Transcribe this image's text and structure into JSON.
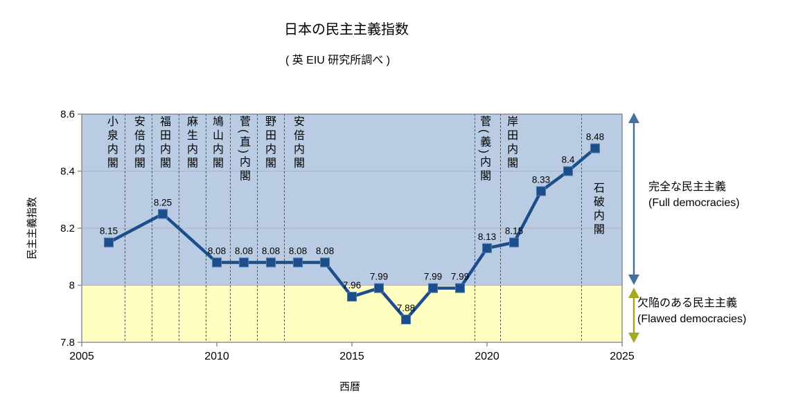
{
  "chart_data": {
    "type": "line",
    "title": "日本の民主主義指数",
    "subtitle": "( 英 EIU 研究所調べ )",
    "xlabel": "西暦",
    "ylabel": "民主主義指数",
    "xlim": [
      2005,
      2025
    ],
    "ylim": [
      7.8,
      8.6
    ],
    "x_ticks": [
      2005,
      2010,
      2015,
      2020,
      2025
    ],
    "y_ticks": [
      8.6,
      8.4,
      8.2,
      8,
      7.8
    ],
    "grid": "horizontal",
    "legend": "none",
    "series": [
      {
        "name": "民主主義指数",
        "points": [
          {
            "year": 2006,
            "value": 8.15
          },
          {
            "year": 2008,
            "value": 8.25
          },
          {
            "year": 2010,
            "value": 8.08
          },
          {
            "year": 2011,
            "value": 8.08
          },
          {
            "year": 2012,
            "value": 8.08
          },
          {
            "year": 2013,
            "value": 8.08
          },
          {
            "year": 2014,
            "value": 8.08
          },
          {
            "year": 2015,
            "value": 7.96
          },
          {
            "year": 2016,
            "value": 7.99
          },
          {
            "year": 2017,
            "value": 7.88
          },
          {
            "year": 2018,
            "value": 7.99
          },
          {
            "year": 2019,
            "value": 7.99
          },
          {
            "year": 2020,
            "value": 8.13
          },
          {
            "year": 2021,
            "value": 8.15
          },
          {
            "year": 2022,
            "value": 8.33
          },
          {
            "year": 2023,
            "value": 8.4
          },
          {
            "year": 2024,
            "value": 8.48
          }
        ]
      }
    ],
    "bands": [
      {
        "id": "full",
        "label_jp": "完全な民主主義",
        "label_en": "(Full democracies)",
        "from": 8.0,
        "to": 8.6,
        "color": "#B9CCE4",
        "arrow_color": "#41719C"
      },
      {
        "id": "flawed",
        "label_jp": "欠陥のある民主主義",
        "label_en": "(Flawed democracies)",
        "from": 7.8,
        "to": 8.0,
        "color": "#FFFFC2",
        "arrow_color": "#A4A820"
      }
    ],
    "cabinets": [
      {
        "label": "小泉内閣",
        "divider_year": null,
        "label_year": 2006.1,
        "label_row": "top"
      },
      {
        "label": "安倍内閣",
        "divider_year": 2006.6,
        "label_year": 2007.1,
        "label_row": "top"
      },
      {
        "label": "福田内閣",
        "divider_year": 2007.6,
        "label_year": 2008.05,
        "label_row": "top"
      },
      {
        "label": "麻生内閣",
        "divider_year": 2008.6,
        "label_year": 2009.05,
        "label_row": "top"
      },
      {
        "label": "鳩山内閣",
        "divider_year": 2009.6,
        "label_year": 2010.0,
        "label_row": "top"
      },
      {
        "label": "菅(直)内閣",
        "divider_year": 2010.5,
        "label_year": 2011.0,
        "label_row": "top"
      },
      {
        "label": "野田内閣",
        "divider_year": 2011.5,
        "label_year": 2011.95,
        "label_row": "top"
      },
      {
        "label": "安倍内閣",
        "divider_year": 2012.5,
        "label_year": 2013.0,
        "label_row": "top"
      },
      {
        "label": "菅(義)内閣",
        "divider_year": 2019.55,
        "label_year": 2019.9,
        "label_row": "top"
      },
      {
        "label": "岸田内閣",
        "divider_year": 2020.5,
        "label_year": 2020.9,
        "label_row": "top"
      },
      {
        "label": "石破内閣",
        "divider_year": 2023.5,
        "label_year": 2024.1,
        "label_row": "middle"
      }
    ],
    "colors": {
      "series": "#1C4E8C",
      "marker_edge": "#4E79AF",
      "grid": "#B2B2B2",
      "plot_border": "#8F8F8F",
      "divider": "#4D4D4D"
    }
  }
}
